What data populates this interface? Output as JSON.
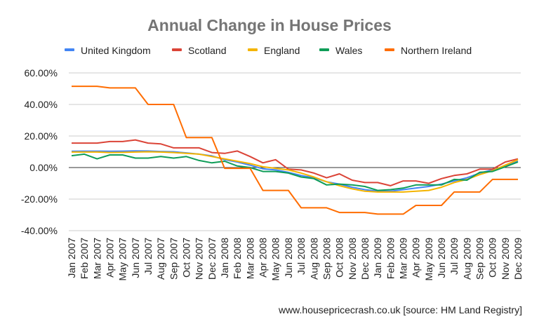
{
  "chart_data": {
    "type": "line",
    "title": "Annual Change in House Prices",
    "source_note": "www.housepricecrash.co.uk [source: HM Land Registry]",
    "legend_position": "top",
    "grid": true,
    "ylim": [
      -40,
      60
    ],
    "ytick_labels": [
      "60.00%",
      "40.00%",
      "20.00%",
      "0.00%",
      "-20.00%",
      "-40.00%"
    ],
    "yticks": [
      60,
      40,
      20,
      0,
      -20,
      -40
    ],
    "categories": [
      "Jan 2007",
      "Feb 2007",
      "Mar 2007",
      "Apr 2007",
      "May 2007",
      "Jun 2007",
      "Jul 2007",
      "Aug 2007",
      "Sep 2007",
      "Oct 2007",
      "Nov 2007",
      "Dec 2007",
      "Jan 2008",
      "Feb 2008",
      "Mar 2008",
      "Apr 2008",
      "May 2008",
      "Jun 2008",
      "Jul 2008",
      "Aug 2008",
      "Sep 2008",
      "Oct 2008",
      "Nov 2008",
      "Dec 2008",
      "Jan 2009",
      "Feb 2009",
      "Mar 2009",
      "Apr 2009",
      "May 2009",
      "Jun 2009",
      "Jul 2009",
      "Aug 2009",
      "Sep 2009",
      "Oct 2009",
      "Nov 2009",
      "Dec 2009"
    ],
    "series": [
      {
        "name": "United Kingdom",
        "color": "#4285f4",
        "values": [
          10.3,
          10.4,
          10.4,
          10.3,
          10.4,
          10.6,
          10.5,
          10.2,
          10.0,
          9.3,
          8.5,
          7.4,
          5.0,
          3.5,
          1.5,
          -0.8,
          -1.5,
          -3.0,
          -5.0,
          -6.5,
          -9.0,
          -10.5,
          -12.5,
          -14.0,
          -15.0,
          -15.0,
          -14.0,
          -13.0,
          -12.0,
          -10.5,
          -8.5,
          -6.5,
          -3.5,
          -1.5,
          1.0,
          4.0
        ]
      },
      {
        "name": "Scotland",
        "color": "#db4437",
        "values": [
          15.5,
          15.5,
          15.5,
          16.5,
          16.5,
          17.5,
          15.5,
          15.0,
          12.5,
          12.5,
          12.5,
          9.5,
          9.0,
          10.5,
          7.0,
          3.0,
          5.0,
          -1.0,
          -1.5,
          -3.5,
          -6.5,
          -4.0,
          -8.0,
          -9.5,
          -9.5,
          -11.5,
          -8.5,
          -8.5,
          -10.0,
          -7.0,
          -5.0,
          -4.0,
          -1.0,
          -1.0,
          3.5,
          5.5
        ]
      },
      {
        "name": "England",
        "color": "#f4b400",
        "values": [
          9.8,
          9.8,
          9.8,
          9.5,
          9.6,
          9.8,
          10.0,
          9.8,
          9.5,
          9.0,
          8.5,
          7.0,
          5.5,
          4.0,
          2.5,
          0.5,
          -0.5,
          -1.5,
          -3.5,
          -6.0,
          -9.0,
          -11.5,
          -13.5,
          -15.0,
          -15.5,
          -15.5,
          -15.5,
          -15.0,
          -14.5,
          -12.5,
          -9.5,
          -7.5,
          -4.5,
          -2.0,
          1.5,
          5.0
        ]
      },
      {
        "name": "Wales",
        "color": "#0f9d58",
        "values": [
          7.5,
          8.5,
          5.5,
          8.0,
          8.0,
          6.0,
          6.0,
          7.0,
          6.0,
          7.0,
          4.5,
          3.0,
          4.0,
          1.0,
          0.0,
          -2.5,
          -2.5,
          -3.5,
          -6.0,
          -7.0,
          -11.0,
          -10.5,
          -11.0,
          -12.0,
          -14.5,
          -14.0,
          -13.0,
          -11.0,
          -11.0,
          -11.0,
          -7.5,
          -8.0,
          -3.0,
          -2.5,
          0.5,
          3.5
        ]
      },
      {
        "name": "Northern Ireland",
        "color": "#ff6d01",
        "values": [
          51.5,
          51.5,
          51.5,
          50.5,
          50.5,
          50.5,
          40.0,
          40.0,
          40.0,
          19.0,
          19.0,
          19.0,
          -0.5,
          -0.5,
          -0.5,
          -14.5,
          -14.5,
          -14.5,
          -25.5,
          -25.5,
          -25.5,
          -28.5,
          -28.5,
          -28.5,
          -29.5,
          -29.5,
          -29.5,
          -24.0,
          -24.0,
          -24.0,
          -15.5,
          -15.5,
          -15.5,
          -7.5,
          -7.5,
          -7.5
        ]
      }
    ]
  }
}
